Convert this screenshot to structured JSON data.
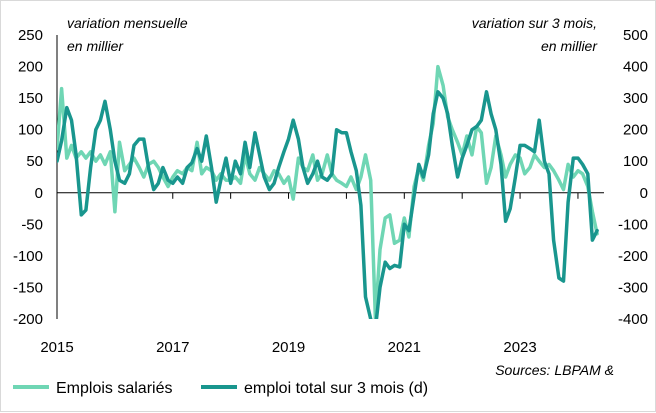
{
  "chart_data": {
    "type": "line",
    "title": "",
    "left_axis": {
      "label_line1": "variation mensuelle",
      "label_line2": "en millier",
      "ylim": [
        -200,
        250
      ],
      "ticks": [
        250,
        200,
        150,
        100,
        50,
        0,
        -50,
        -100,
        -150,
        -200
      ]
    },
    "right_axis": {
      "label_line1": "variation sur 3 mois,",
      "label_line2": "en millier",
      "ylim": [
        -400,
        500
      ],
      "ticks": [
        500,
        400,
        300,
        200,
        100,
        0,
        -100,
        -200,
        -300,
        -400
      ]
    },
    "x_axis": {
      "xlim": [
        2015.0,
        2024.45
      ],
      "ticks": [
        "2015",
        "2017",
        "2019",
        "2021",
        "2023"
      ],
      "tick_values": [
        2015,
        2017,
        2019,
        2021,
        2023
      ]
    },
    "source": "Sources: LBPAM &",
    "series": [
      {
        "name": "Emplois salariés",
        "axis": "left",
        "color": "#6fd6b4",
        "points": [
          [
            2015.0,
            70
          ],
          [
            2015.08,
            165
          ],
          [
            2015.17,
            55
          ],
          [
            2015.25,
            75
          ],
          [
            2015.33,
            55
          ],
          [
            2015.42,
            65
          ],
          [
            2015.5,
            55
          ],
          [
            2015.58,
            65
          ],
          [
            2015.67,
            50
          ],
          [
            2015.75,
            60
          ],
          [
            2015.83,
            45
          ],
          [
            2015.92,
            65
          ],
          [
            2016.0,
            -30
          ],
          [
            2016.08,
            80
          ],
          [
            2016.17,
            35
          ],
          [
            2016.25,
            45
          ],
          [
            2016.33,
            55
          ],
          [
            2016.42,
            40
          ],
          [
            2016.5,
            25
          ],
          [
            2016.58,
            45
          ],
          [
            2016.67,
            50
          ],
          [
            2016.75,
            40
          ],
          [
            2016.83,
            25
          ],
          [
            2016.92,
            10
          ],
          [
            2017.0,
            25
          ],
          [
            2017.08,
            35
          ],
          [
            2017.17,
            30
          ],
          [
            2017.25,
            40
          ],
          [
            2017.33,
            35
          ],
          [
            2017.42,
            80
          ],
          [
            2017.5,
            30
          ],
          [
            2017.58,
            40
          ],
          [
            2017.67,
            35
          ],
          [
            2017.75,
            20
          ],
          [
            2017.83,
            30
          ],
          [
            2017.92,
            20
          ],
          [
            2018.0,
            20
          ],
          [
            2018.08,
            25
          ],
          [
            2018.17,
            15
          ],
          [
            2018.25,
            60
          ],
          [
            2018.33,
            30
          ],
          [
            2018.42,
            20
          ],
          [
            2018.5,
            40
          ],
          [
            2018.58,
            30
          ],
          [
            2018.67,
            20
          ],
          [
            2018.75,
            35
          ],
          [
            2018.83,
            30
          ],
          [
            2018.92,
            15
          ],
          [
            2019.0,
            25
          ],
          [
            2019.08,
            -10
          ],
          [
            2019.17,
            55
          ],
          [
            2019.25,
            40
          ],
          [
            2019.33,
            35
          ],
          [
            2019.42,
            60
          ],
          [
            2019.5,
            20
          ],
          [
            2019.58,
            30
          ],
          [
            2019.67,
            60
          ],
          [
            2019.75,
            30
          ],
          [
            2019.83,
            20
          ],
          [
            2019.92,
            15
          ],
          [
            2020.0,
            10
          ],
          [
            2020.08,
            25
          ],
          [
            2020.17,
            5
          ],
          [
            2020.25,
            25
          ],
          [
            2020.33,
            60
          ],
          [
            2020.42,
            20
          ],
          [
            2020.5,
            -200
          ],
          [
            2020.58,
            -90
          ],
          [
            2020.67,
            -40
          ],
          [
            2020.75,
            -35
          ],
          [
            2020.83,
            -80
          ],
          [
            2020.92,
            -75
          ],
          [
            2021.0,
            -40
          ],
          [
            2021.08,
            -70
          ],
          [
            2021.17,
            10
          ],
          [
            2021.25,
            40
          ],
          [
            2021.33,
            20
          ],
          [
            2021.42,
            75
          ],
          [
            2021.5,
            110
          ],
          [
            2021.58,
            200
          ],
          [
            2021.67,
            170
          ],
          [
            2021.75,
            120
          ],
          [
            2021.83,
            100
          ],
          [
            2021.92,
            80
          ],
          [
            2022.0,
            60
          ],
          [
            2022.08,
            90
          ],
          [
            2022.17,
            60
          ],
          [
            2022.25,
            105
          ],
          [
            2022.33,
            95
          ],
          [
            2022.42,
            15
          ],
          [
            2022.5,
            40
          ],
          [
            2022.58,
            90
          ],
          [
            2022.67,
            60
          ],
          [
            2022.75,
            25
          ],
          [
            2022.83,
            45
          ],
          [
            2022.92,
            60
          ],
          [
            2023.0,
            55
          ],
          [
            2023.08,
            30
          ],
          [
            2023.17,
            40
          ],
          [
            2023.25,
            60
          ],
          [
            2023.33,
            50
          ],
          [
            2023.42,
            40
          ],
          [
            2023.5,
            45
          ],
          [
            2023.58,
            35
          ],
          [
            2023.67,
            20
          ],
          [
            2023.75,
            5
          ],
          [
            2023.83,
            45
          ],
          [
            2023.92,
            25
          ],
          [
            2024.0,
            35
          ],
          [
            2024.08,
            30
          ],
          [
            2024.17,
            10
          ],
          [
            2024.25,
            -30
          ],
          [
            2024.33,
            -65
          ]
        ]
      },
      {
        "name": "emploi total sur 3 mois (d)",
        "axis": "right",
        "color": "#19968e",
        "points": [
          [
            2015.0,
            100
          ],
          [
            2015.08,
            165
          ],
          [
            2015.17,
            270
          ],
          [
            2015.25,
            230
          ],
          [
            2015.33,
            120
          ],
          [
            2015.42,
            -70
          ],
          [
            2015.5,
            -55
          ],
          [
            2015.58,
            80
          ],
          [
            2015.67,
            200
          ],
          [
            2015.75,
            230
          ],
          [
            2015.83,
            290
          ],
          [
            2015.92,
            200
          ],
          [
            2016.0,
            100
          ],
          [
            2016.08,
            40
          ],
          [
            2016.17,
            30
          ],
          [
            2016.25,
            60
          ],
          [
            2016.33,
            150
          ],
          [
            2016.42,
            170
          ],
          [
            2016.5,
            170
          ],
          [
            2016.58,
            80
          ],
          [
            2016.67,
            10
          ],
          [
            2016.75,
            30
          ],
          [
            2016.83,
            80
          ],
          [
            2016.92,
            40
          ],
          [
            2017.0,
            30
          ],
          [
            2017.08,
            50
          ],
          [
            2017.17,
            30
          ],
          [
            2017.25,
            80
          ],
          [
            2017.33,
            95
          ],
          [
            2017.42,
            140
          ],
          [
            2017.5,
            100
          ],
          [
            2017.58,
            180
          ],
          [
            2017.67,
            80
          ],
          [
            2017.75,
            -30
          ],
          [
            2017.83,
            40
          ],
          [
            2017.92,
            110
          ],
          [
            2018.0,
            30
          ],
          [
            2018.08,
            100
          ],
          [
            2018.17,
            60
          ],
          [
            2018.25,
            160
          ],
          [
            2018.33,
            80
          ],
          [
            2018.42,
            190
          ],
          [
            2018.5,
            120
          ],
          [
            2018.58,
            50
          ],
          [
            2018.67,
            10
          ],
          [
            2018.75,
            30
          ],
          [
            2018.83,
            80
          ],
          [
            2018.92,
            130
          ],
          [
            2019.0,
            170
          ],
          [
            2019.08,
            230
          ],
          [
            2019.17,
            170
          ],
          [
            2019.25,
            80
          ],
          [
            2019.33,
            30
          ],
          [
            2019.42,
            60
          ],
          [
            2019.5,
            100
          ],
          [
            2019.58,
            50
          ],
          [
            2019.67,
            40
          ],
          [
            2019.75,
            60
          ],
          [
            2019.83,
            200
          ],
          [
            2019.92,
            190
          ],
          [
            2020.0,
            190
          ],
          [
            2020.08,
            130
          ],
          [
            2020.17,
            70
          ],
          [
            2020.25,
            -40
          ],
          [
            2020.33,
            -330
          ],
          [
            2020.42,
            -400
          ],
          [
            2020.5,
            -430
          ],
          [
            2020.58,
            -300
          ],
          [
            2020.67,
            -220
          ],
          [
            2020.75,
            -240
          ],
          [
            2020.83,
            -230
          ],
          [
            2020.92,
            -235
          ],
          [
            2021.0,
            -100
          ],
          [
            2021.08,
            -120
          ],
          [
            2021.17,
            -10
          ],
          [
            2021.25,
            90
          ],
          [
            2021.33,
            50
          ],
          [
            2021.42,
            120
          ],
          [
            2021.5,
            250
          ],
          [
            2021.58,
            320
          ],
          [
            2021.67,
            300
          ],
          [
            2021.75,
            250
          ],
          [
            2021.83,
            150
          ],
          [
            2021.92,
            50
          ],
          [
            2022.0,
            110
          ],
          [
            2022.08,
            150
          ],
          [
            2022.17,
            200
          ],
          [
            2022.25,
            210
          ],
          [
            2022.33,
            230
          ],
          [
            2022.42,
            320
          ],
          [
            2022.5,
            250
          ],
          [
            2022.58,
            200
          ],
          [
            2022.67,
            90
          ],
          [
            2022.75,
            -90
          ],
          [
            2022.83,
            -50
          ],
          [
            2022.92,
            50
          ],
          [
            2023.0,
            150
          ],
          [
            2023.08,
            150
          ],
          [
            2023.17,
            140
          ],
          [
            2023.25,
            130
          ],
          [
            2023.33,
            230
          ],
          [
            2023.42,
            100
          ],
          [
            2023.5,
            60
          ],
          [
            2023.58,
            -150
          ],
          [
            2023.67,
            -270
          ],
          [
            2023.75,
            -280
          ],
          [
            2023.83,
            -30
          ],
          [
            2023.92,
            110
          ],
          [
            2024.0,
            110
          ],
          [
            2024.08,
            90
          ],
          [
            2024.17,
            60
          ],
          [
            2024.25,
            -150
          ],
          [
            2024.33,
            -120
          ]
        ]
      }
    ]
  }
}
